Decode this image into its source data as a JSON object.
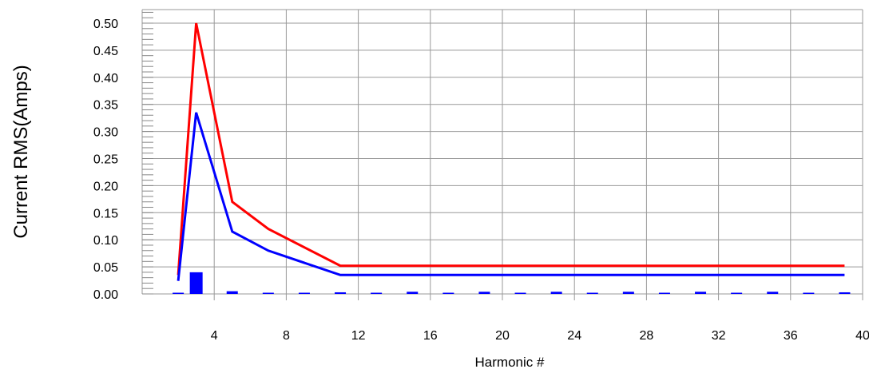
{
  "chart_data": {
    "type": "line",
    "title": "",
    "xlabel": "Harmonic #",
    "ylabel": "Current RMS(Amps)",
    "xlim": [
      0,
      40
    ],
    "ylim": [
      0,
      0.5
    ],
    "x_ticks": [
      "4",
      "8",
      "12",
      "16",
      "20",
      "24",
      "28",
      "32",
      "36",
      "40"
    ],
    "y_ticks": [
      "0.00",
      "0.05",
      "0.10",
      "0.15",
      "0.20",
      "0.25",
      "0.30",
      "0.35",
      "0.40",
      "0.45",
      "0.50"
    ],
    "grid": true,
    "series": [
      {
        "color": "#ff0000",
        "style": "line",
        "points": [
          [
            2,
            0.035
          ],
          [
            3,
            0.5
          ],
          [
            5,
            0.17
          ],
          [
            7,
            0.12
          ],
          [
            11,
            0.052
          ],
          [
            39,
            0.052
          ]
        ]
      },
      {
        "color": "#0000ff",
        "style": "line",
        "points": [
          [
            2,
            0.024
          ],
          [
            3,
            0.335
          ],
          [
            5,
            0.115
          ],
          [
            7,
            0.08
          ],
          [
            11,
            0.035
          ],
          [
            39,
            0.035
          ]
        ]
      },
      {
        "color": "#0000ff",
        "style": "bar",
        "points": [
          [
            2,
            0.001
          ],
          [
            3,
            0.04
          ],
          [
            5,
            0.005
          ],
          [
            7,
            0.002
          ],
          [
            9,
            0.002
          ],
          [
            11,
            0.003
          ],
          [
            13,
            0.002
          ],
          [
            15,
            0.004
          ],
          [
            17,
            0.002
          ],
          [
            19,
            0.004
          ],
          [
            21,
            0.002
          ],
          [
            23,
            0.004
          ],
          [
            25,
            0.002
          ],
          [
            27,
            0.004
          ],
          [
            29,
            0.002
          ],
          [
            31,
            0.004
          ],
          [
            33,
            0.002
          ],
          [
            35,
            0.004
          ],
          [
            37,
            0.002
          ],
          [
            39,
            0.003
          ]
        ]
      }
    ]
  }
}
